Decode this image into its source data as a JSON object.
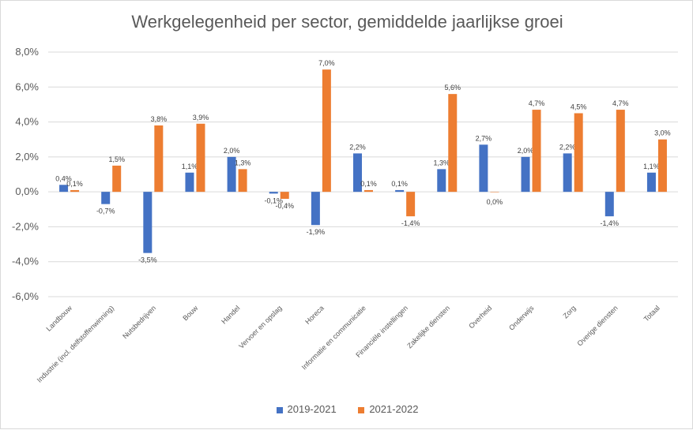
{
  "chart_data": {
    "type": "bar",
    "title": "Werkgelegenheid per sector, gemiddelde jaarlijkse groei",
    "categories": [
      "Landbouw",
      "Industrie (incl. delfstoffenwinning)",
      "Nutsbedrijven",
      "Bouw",
      "Handel",
      "Vervoer en opslag",
      "Horeca",
      "Informatie en communicatie",
      "Financiële instellingen",
      "Zakelijke diensten",
      "Overheid",
      "Onderwijs",
      "Zorg",
      "Overige diensten",
      "Totaal"
    ],
    "series": [
      {
        "name": "2019-2021",
        "color": "#4472c4",
        "values": [
          0.4,
          -0.7,
          -3.5,
          1.1,
          2.0,
          -0.1,
          -1.9,
          2.2,
          0.1,
          1.3,
          2.7,
          2.0,
          2.2,
          -1.4,
          1.1
        ],
        "labels": [
          "0,4%",
          "-0,7%",
          "-3,5%",
          "1,1%",
          "2,0%",
          "-0,1%",
          "-1,9%",
          "2,2%",
          "0,1%",
          "1,3%",
          "2,7%",
          "2,0%",
          "2,2%",
          "-1,4%",
          "1,1%"
        ]
      },
      {
        "name": "2021-2022",
        "color": "#ed7d31",
        "values": [
          0.1,
          1.5,
          3.8,
          3.9,
          1.3,
          -0.4,
          7.0,
          0.1,
          -1.4,
          5.6,
          0.0,
          4.7,
          4.5,
          4.7,
          3.0
        ],
        "labels": [
          "0,1%",
          "1,5%",
          "3,8%",
          "3,9%",
          "1,3%",
          "-0,4%",
          "7,0%",
          "0,1%",
          "-1,4%",
          "5,6%",
          "0,0%",
          "4,7%",
          "4,5%",
          "4,7%",
          "3,0%"
        ]
      }
    ],
    "ylim": [
      -6,
      8
    ],
    "yticks": [
      -6,
      -4,
      -2,
      0,
      2,
      4,
      6,
      8
    ],
    "ytick_labels": [
      "-6,0%",
      "-4,0%",
      "-2,0%",
      "0,0%",
      "2,0%",
      "4,0%",
      "6,0%",
      "8,0%"
    ],
    "grid": true,
    "legend": "bottom",
    "xlabel": "",
    "ylabel": ""
  }
}
